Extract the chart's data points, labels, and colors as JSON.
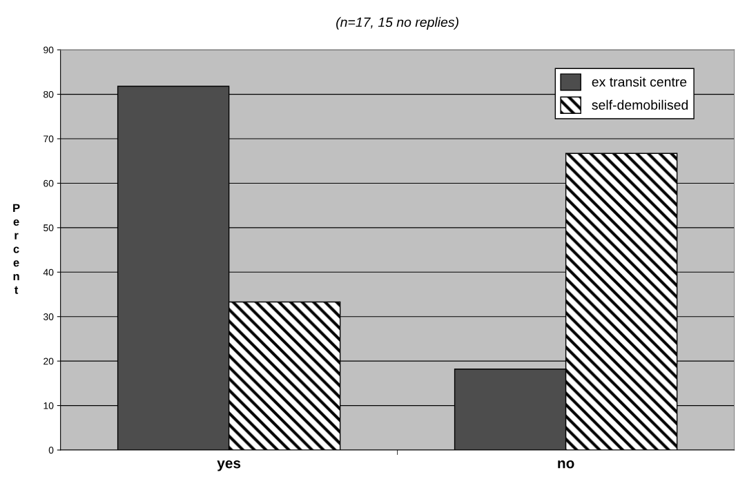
{
  "chart_data": {
    "type": "bar",
    "title": "(n=17, 15 no replies)",
    "ylabel": "Percent",
    "categories": [
      "yes",
      "no"
    ],
    "series": [
      {
        "name": "ex transit centre",
        "color": "#4d4d4d",
        "values": [
          81.8,
          18.2
        ]
      },
      {
        "name": "self-demobilised",
        "color": "#000000",
        "values": [
          33.3,
          66.7
        ]
      }
    ],
    "ylim": [
      0,
      90
    ],
    "yticks": [
      0,
      10,
      20,
      30,
      40,
      50,
      60,
      70,
      80,
      90
    ],
    "grid": "y",
    "legend": "top right"
  }
}
